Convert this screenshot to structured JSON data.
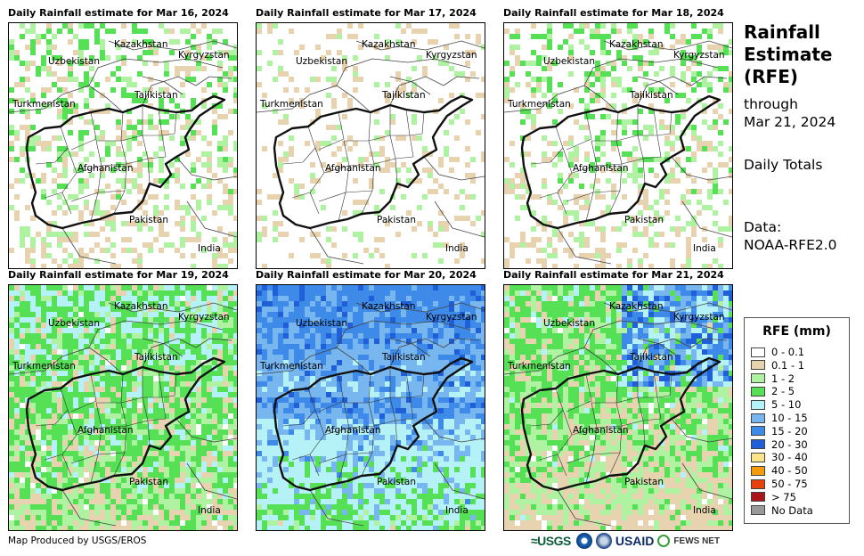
{
  "panels": [
    {
      "title": "Daily Rainfall estimate for Mar 16, 2024",
      "intensity": 1
    },
    {
      "title": "Daily Rainfall estimate for Mar 17, 2024",
      "intensity": 0
    },
    {
      "title": "Daily Rainfall estimate for Mar 18, 2024",
      "intensity": 1
    },
    {
      "title": "Daily Rainfall estimate for Mar 19, 2024",
      "intensity": 2
    },
    {
      "title": "Daily Rainfall estimate for Mar 20, 2024",
      "intensity": 4
    },
    {
      "title": "Daily Rainfall estimate for Mar 21, 2024",
      "intensity": 3
    }
  ],
  "country_labels": {
    "kazakhstan": "Kazakhstan",
    "uzbekistan": "Uzbekistan",
    "kyrgyzstan": "Kyrgyzstan",
    "tajikistan": "Tajikistan",
    "turkmenistan": "Turkmenistan",
    "afghanistan": "Afghanistan",
    "pakistan": "Pakistan",
    "india": "India"
  },
  "side": {
    "title_line1": "Rainfall",
    "title_line2": "Estimate",
    "title_line3": "(RFE)",
    "through": "through",
    "date": "Mar 21, 2024",
    "totals": "Daily Totals",
    "data_label": "Data:",
    "data_source": "NOAA-RFE2.0"
  },
  "legend": {
    "title": "RFE (mm)",
    "items": [
      {
        "label": "0 - 0.1",
        "color": "#ffffff"
      },
      {
        "label": "0.1 - 1",
        "color": "#e8d3b0"
      },
      {
        "label": "1 - 2",
        "color": "#aef2a2"
      },
      {
        "label": "2 - 5",
        "color": "#55e055"
      },
      {
        "label": "5 - 10",
        "color": "#b5f2f7"
      },
      {
        "label": "10 - 15",
        "color": "#78b6f0"
      },
      {
        "label": "15 - 20",
        "color": "#3d8ae8"
      },
      {
        "label": "20 - 30",
        "color": "#1f5fd8"
      },
      {
        "label": "30 - 40",
        "color": "#fbe38a"
      },
      {
        "label": "40 - 50",
        "color": "#f59b0a"
      },
      {
        "label": "50 - 75",
        "color": "#e8400a"
      },
      {
        "label": "> 75",
        "color": "#a8161a"
      },
      {
        "label": "No Data",
        "color": "#999999"
      }
    ]
  },
  "footer": {
    "credit": "Map Produced by USGS/EROS",
    "logo_usgs": "≈USGS",
    "logo_usaid": "USAID",
    "logo_fews": "FEWS NET"
  }
}
